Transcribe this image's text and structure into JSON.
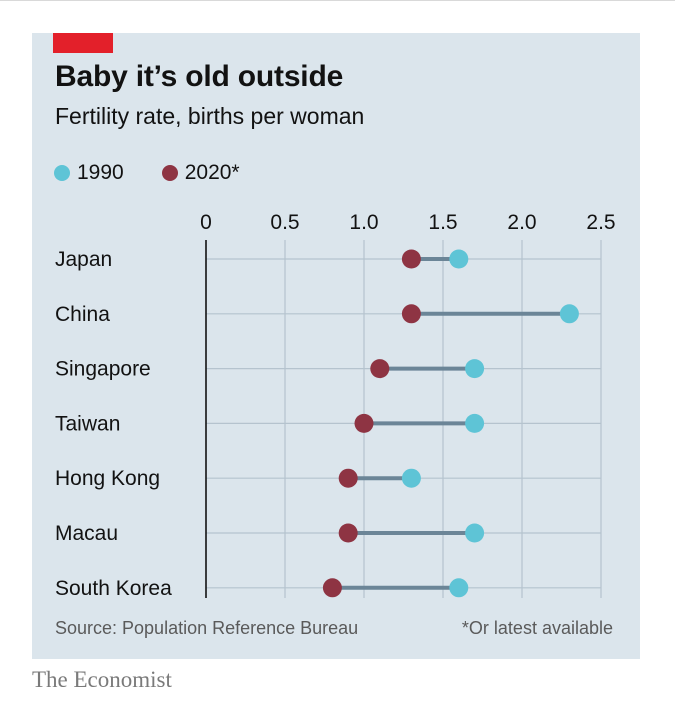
{
  "header": {
    "title": "Baby it’s old outside",
    "subtitle": "Fertility rate, births per woman"
  },
  "colors": {
    "accent_tag": "#e3202a",
    "background": "#dbe5ec",
    "series_1990": "#5ec4d6",
    "series_2020": "#8e3443",
    "connector": "#6b8597"
  },
  "chart_data": {
    "type": "dot-range",
    "title": "Baby it’s old outside",
    "subtitle": "Fertility rate, births per woman",
    "xlim": [
      0,
      2.5
    ],
    "xticks": [
      0,
      0.5,
      1.0,
      1.5,
      2.0,
      2.5
    ],
    "xtick_labels": [
      "0",
      "0.5",
      "1.0",
      "1.5",
      "2.0",
      "2.5"
    ],
    "grid": true,
    "legend_position": "top-left",
    "categories": [
      "Japan",
      "China",
      "Singapore",
      "Taiwan",
      "Hong Kong",
      "Macau",
      "South Korea"
    ],
    "series": [
      {
        "name": "1990",
        "color": "#5ec4d6",
        "values": [
          1.6,
          2.3,
          1.7,
          1.7,
          1.3,
          1.7,
          1.6
        ]
      },
      {
        "name": "2020*",
        "color": "#8e3443",
        "values": [
          1.3,
          1.3,
          1.1,
          1.0,
          0.9,
          0.9,
          0.8
        ]
      }
    ]
  },
  "footer": {
    "source": "Source: Population Reference Bureau",
    "note": "*Or latest available",
    "brand": "The Economist"
  }
}
